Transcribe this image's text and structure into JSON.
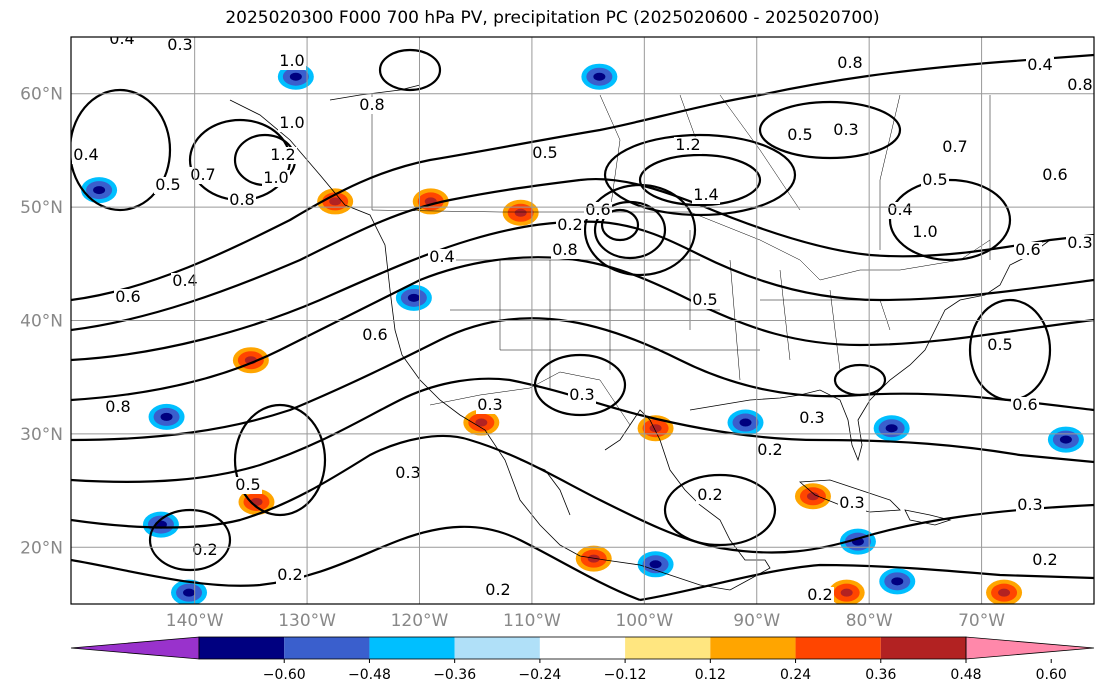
{
  "title": "2025020300 F000 700 hPa PV, precipitation PC (2025020600 - 2025020700)",
  "map": {
    "lon_range": [
      -151,
      -60
    ],
    "lat_range": [
      15,
      65
    ],
    "lat_ticks": [
      "20°N",
      "30°N",
      "40°N",
      "50°N",
      "60°N"
    ],
    "lon_ticks": [
      "140°W",
      "130°W",
      "120°W",
      "110°W",
      "100°W",
      "90°W",
      "80°W",
      "70°W"
    ],
    "gridlines": true
  },
  "contour_labels": [
    "0.4",
    "0.3",
    "1.0",
    "0.8",
    "1.0",
    "1.2",
    "0.4",
    "0.5",
    "0.7",
    "0.8",
    "1.0",
    "0.6",
    "0.4",
    "0.5",
    "1.2",
    "1.4",
    "0.6",
    "0.8",
    "0.8",
    "0.4",
    "0.5",
    "0.3",
    "0.7",
    "0.5",
    "0.6",
    "0.4",
    "0.8",
    "1.0",
    "0.6",
    "0.5",
    "0.4",
    "0.6",
    "0.5",
    "0.3",
    "0.2",
    "0.3",
    "0.2",
    "0.6",
    "0.3",
    "0.8",
    "0.2",
    "0.5",
    "0.3",
    "0.2",
    "0.2",
    "0.3",
    "0.2",
    "0.2",
    "0.3",
    "0.3",
    "0.2"
  ],
  "colorbar": {
    "tick_labels": [
      "−0.60",
      "−0.48",
      "−0.36",
      "−0.24",
      "−0.12",
      "0.12",
      "0.24",
      "0.36",
      "0.48",
      "0.60"
    ],
    "colors": [
      "#9932cc",
      "#000080",
      "#3a5fcd",
      "#00bfff",
      "#b0e0f8",
      "#ffffff",
      "#ffe680",
      "#ffa500",
      "#ff4500",
      "#b22222",
      "#ff88aa"
    ]
  },
  "precip_blobs": [
    {
      "lon": -148.5,
      "lat": 51.5,
      "kind": "neg"
    },
    {
      "lon": -142.5,
      "lat": 31.5,
      "kind": "neg"
    },
    {
      "lon": -143,
      "lat": 22,
      "kind": "neg"
    },
    {
      "lon": -140.5,
      "lat": 16,
      "kind": "neg"
    },
    {
      "lon": -120.5,
      "lat": 42,
      "kind": "neg"
    },
    {
      "lon": -131,
      "lat": 61.5,
      "kind": "neg"
    },
    {
      "lon": -104,
      "lat": 61.5,
      "kind": "neg"
    },
    {
      "lon": -127.5,
      "lat": 50.5,
      "kind": "pos"
    },
    {
      "lon": -119,
      "lat": 50.5,
      "kind": "pos"
    },
    {
      "lon": -111,
      "lat": 49.5,
      "kind": "pos"
    },
    {
      "lon": -99,
      "lat": 30.5,
      "kind": "pos"
    },
    {
      "lon": -85,
      "lat": 24.5,
      "kind": "pos"
    },
    {
      "lon": -82,
      "lat": 16,
      "kind": "pos"
    },
    {
      "lon": -68,
      "lat": 16,
      "kind": "pos"
    },
    {
      "lon": -104.5,
      "lat": 19,
      "kind": "pos"
    },
    {
      "lon": -114.5,
      "lat": 31,
      "kind": "pos"
    },
    {
      "lon": -135,
      "lat": 36.5,
      "kind": "pos"
    },
    {
      "lon": -134.5,
      "lat": 24,
      "kind": "pos"
    },
    {
      "lon": -62.5,
      "lat": 29.5,
      "kind": "neg"
    },
    {
      "lon": -99,
      "lat": 18.5,
      "kind": "neg"
    },
    {
      "lon": -91,
      "lat": 31,
      "kind": "neg"
    },
    {
      "lon": -77.5,
      "lat": 17,
      "kind": "neg"
    },
    {
      "lon": -78,
      "lat": 30.5,
      "kind": "neg"
    },
    {
      "lon": -81,
      "lat": 20.5,
      "kind": "neg"
    }
  ]
}
